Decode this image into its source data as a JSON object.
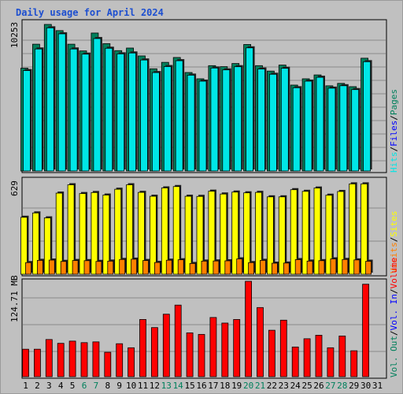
{
  "title": "Daily usage for April 2024",
  "colors": {
    "background": "#c0c0c0",
    "title": "#1d4fd0",
    "hits": "#00805c",
    "files": "#0000ff",
    "pages": "#00e6e6",
    "visits": "#ffff00",
    "sites": "#ff8000",
    "kbytes": "#ff0000",
    "weekend": "#00805c",
    "weekday": "#000000"
  },
  "legend": {
    "top": [
      "Hits",
      "Files",
      "Pages"
    ],
    "middle": [
      "Visits",
      "Sites"
    ],
    "bottom": [
      "Vol. Out",
      "Vol. In",
      "Volume"
    ]
  },
  "separator": "/",
  "chart_data": [
    {
      "type": "bar",
      "panel": "hits-files-pages",
      "y_max_label": "10253",
      "ylim": [
        0,
        10253
      ],
      "categories": [
        "1",
        "2",
        "3",
        "4",
        "5",
        "6",
        "7",
        "8",
        "9",
        "10",
        "11",
        "12",
        "13",
        "14",
        "15",
        "16",
        "17",
        "18",
        "19",
        "20",
        "21",
        "22",
        "23",
        "24",
        "25",
        "26",
        "27",
        "28",
        "29",
        "30",
        "31"
      ],
      "series": [
        {
          "name": "Hits",
          "values": [
            7190,
            8870,
            10253,
            9820,
            8870,
            8400,
            9650,
            8910,
            8420,
            8600,
            8050,
            7150,
            7600,
            7940,
            6890,
            6450,
            7370,
            7300,
            7520,
            8850,
            7370,
            6990,
            7410,
            6010,
            6450,
            6720,
            5960,
            6130,
            5900,
            7890,
            null
          ]
        },
        {
          "name": "Files",
          "values": [
            7190,
            8700,
            10180,
            9760,
            8700,
            8340,
            9430,
            8750,
            8360,
            8420,
            7930,
            7050,
            7470,
            7880,
            6870,
            6450,
            7370,
            7240,
            7460,
            8780,
            7300,
            6930,
            7350,
            5990,
            6450,
            6720,
            5960,
            6130,
            5860,
            7810,
            null
          ]
        }
      ]
    },
    {
      "type": "bar",
      "panel": "visits-sites",
      "y_max_label": "629",
      "ylim": [
        0,
        629
      ],
      "categories": [
        "1",
        "2",
        "3",
        "4",
        "5",
        "6",
        "7",
        "8",
        "9",
        "10",
        "11",
        "12",
        "13",
        "14",
        "15",
        "16",
        "17",
        "18",
        "19",
        "20",
        "21",
        "22",
        "23",
        "24",
        "25",
        "26",
        "27",
        "28",
        "29",
        "30",
        "31"
      ],
      "series": [
        {
          "name": "Visits",
          "values": [
            382,
            411,
            378,
            544,
            600,
            541,
            548,
            531,
            570,
            600,
            549,
            523,
            579,
            588,
            523,
            522,
            557,
            538,
            551,
            546,
            549,
            519,
            519,
            567,
            556,
            578,
            530,
            555,
            606,
            606,
            null
          ]
        },
        {
          "name": "Sites",
          "values": [
            78,
            93,
            95,
            86,
            92,
            91,
            86,
            88,
            99,
            101,
            92,
            79,
            94,
            97,
            72,
            88,
            89,
            90,
            103,
            78,
            93,
            74,
            75,
            98,
            88,
            91,
            103,
            99,
            96,
            87,
            null
          ]
        }
      ]
    },
    {
      "type": "bar",
      "panel": "volume",
      "y_max_label": "124.71 MB",
      "ylim": [
        0,
        124.71
      ],
      "categories": [
        "1",
        "2",
        "3",
        "4",
        "5",
        "6",
        "7",
        "8",
        "9",
        "10",
        "11",
        "12",
        "13",
        "14",
        "15",
        "16",
        "17",
        "18",
        "19",
        "20",
        "21",
        "22",
        "23",
        "24",
        "25",
        "26",
        "27",
        "28",
        "29",
        "30",
        "31"
      ],
      "series": [
        {
          "name": "Volume",
          "values": [
            35.9,
            35.9,
            48.6,
            43.6,
            46.5,
            44.5,
            45.5,
            31.9,
            43.1,
            37.8,
            74.8,
            64.2,
            81.7,
            93.6,
            57.3,
            55.3,
            77.4,
            70.1,
            74.8,
            124.71,
            90.4,
            60.7,
            73.9,
            38.8,
            49.6,
            54.2,
            37.8,
            53.2,
            33.9,
            120.9,
            null
          ]
        }
      ]
    }
  ]
}
